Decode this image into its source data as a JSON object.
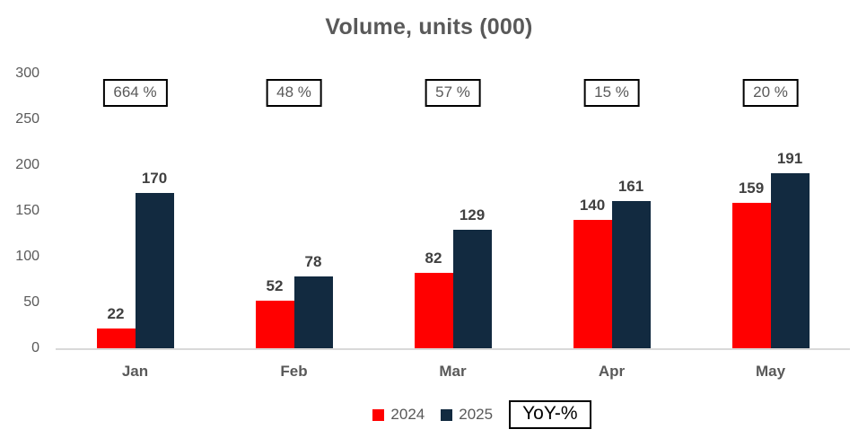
{
  "chart_data": {
    "type": "bar",
    "title": "Volume, units (000)",
    "categories": [
      "Jan",
      "Feb",
      "Mar",
      "Apr",
      "May"
    ],
    "series": [
      {
        "name": "2024",
        "color": "#FF0000",
        "values": [
          22,
          52,
          82,
          140,
          159
        ]
      },
      {
        "name": "2025",
        "color": "#122A40",
        "values": [
          170,
          78,
          129,
          161,
          191
        ]
      }
    ],
    "annotations": {
      "yoy_percent_labels": [
        "664 %",
        "48 %",
        "57 %",
        "15 %",
        "20 %"
      ]
    },
    "y_ticks": [
      0,
      50,
      100,
      150,
      200,
      250,
      300
    ],
    "ylim": [
      0,
      300
    ],
    "grid": false,
    "legend_position": "bottom",
    "legend_extra_box_label": "YoY-%"
  },
  "colors": {
    "series_2024": "#FF0000",
    "series_2025": "#122A40",
    "title_text": "#595959",
    "axis_text": "#595959",
    "data_label_text": "#404040",
    "baseline": "#D9D9D9",
    "annotation_border": "#000000",
    "annotation_text": "#595959",
    "background": "#FFFFFF"
  }
}
